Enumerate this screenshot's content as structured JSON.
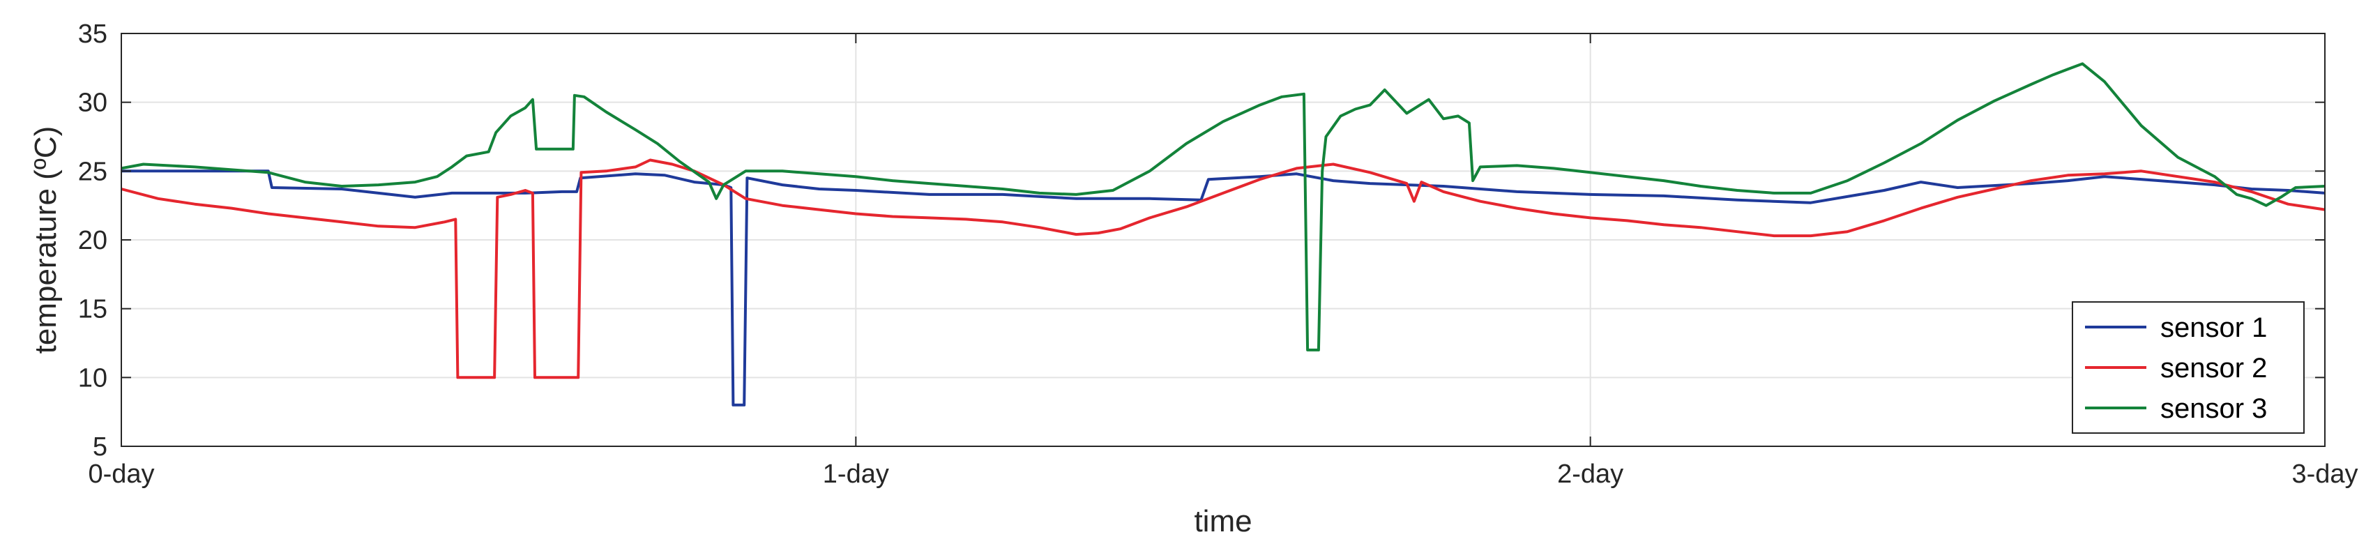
{
  "chart_data": {
    "type": "line",
    "title": "",
    "xlabel": "time",
    "ylabel": "temperature (ºC)",
    "xlim": [
      0,
      3
    ],
    "ylim": [
      5,
      35
    ],
    "x_ticks": [
      0,
      1,
      2,
      3
    ],
    "x_tick_labels": [
      "0-day",
      "1-day",
      "2-day",
      "3-day"
    ],
    "y_ticks": [
      5,
      10,
      15,
      20,
      25,
      30,
      35
    ],
    "y_tick_labels": [
      "5",
      "10",
      "15",
      "20",
      "25",
      "30",
      "35"
    ],
    "grid": true,
    "legend_position": "bottom-right",
    "series": [
      {
        "name": "sensor 1",
        "color": "#1f3a9a",
        "points": [
          [
            0.0,
            25.0
          ],
          [
            0.2,
            25.0
          ],
          [
            0.205,
            23.8
          ],
          [
            0.3,
            23.7
          ],
          [
            0.35,
            23.4
          ],
          [
            0.4,
            23.1
          ],
          [
            0.45,
            23.4
          ],
          [
            0.5,
            23.4
          ],
          [
            0.55,
            23.4
          ],
          [
            0.6,
            23.5
          ],
          [
            0.62,
            23.5
          ],
          [
            0.625,
            24.5
          ],
          [
            0.7,
            24.8
          ],
          [
            0.74,
            24.7
          ],
          [
            0.78,
            24.2
          ],
          [
            0.82,
            24.0
          ],
          [
            0.83,
            23.8
          ],
          [
            0.833,
            8.0
          ],
          [
            0.848,
            8.0
          ],
          [
            0.852,
            24.5
          ],
          [
            0.9,
            24.0
          ],
          [
            0.95,
            23.7
          ],
          [
            1.0,
            23.6
          ],
          [
            1.1,
            23.3
          ],
          [
            1.2,
            23.3
          ],
          [
            1.3,
            23.0
          ],
          [
            1.4,
            23.0
          ],
          [
            1.47,
            22.9
          ],
          [
            1.48,
            24.4
          ],
          [
            1.55,
            24.6
          ],
          [
            1.6,
            24.8
          ],
          [
            1.65,
            24.3
          ],
          [
            1.7,
            24.1
          ],
          [
            1.8,
            23.9
          ],
          [
            1.9,
            23.5
          ],
          [
            2.0,
            23.3
          ],
          [
            2.1,
            23.2
          ],
          [
            2.2,
            22.9
          ],
          [
            2.3,
            22.7
          ],
          [
            2.4,
            23.6
          ],
          [
            2.45,
            24.2
          ],
          [
            2.5,
            23.8
          ],
          [
            2.6,
            24.1
          ],
          [
            2.65,
            24.3
          ],
          [
            2.7,
            24.6
          ],
          [
            2.8,
            24.2
          ],
          [
            2.85,
            24.0
          ],
          [
            2.9,
            23.7
          ],
          [
            2.95,
            23.6
          ],
          [
            3.0,
            23.4
          ]
        ]
      },
      {
        "name": "sensor 2",
        "color": "#e5262e",
        "points": [
          [
            0.0,
            23.7
          ],
          [
            0.05,
            23.0
          ],
          [
            0.1,
            22.6
          ],
          [
            0.15,
            22.3
          ],
          [
            0.2,
            21.9
          ],
          [
            0.25,
            21.6
          ],
          [
            0.3,
            21.3
          ],
          [
            0.35,
            21.0
          ],
          [
            0.4,
            20.9
          ],
          [
            0.44,
            21.3
          ],
          [
            0.455,
            21.5
          ],
          [
            0.458,
            10.0
          ],
          [
            0.508,
            10.0
          ],
          [
            0.512,
            23.1
          ],
          [
            0.53,
            23.3
          ],
          [
            0.55,
            23.6
          ],
          [
            0.56,
            23.4
          ],
          [
            0.563,
            10.0
          ],
          [
            0.622,
            10.0
          ],
          [
            0.626,
            24.9
          ],
          [
            0.66,
            25.0
          ],
          [
            0.7,
            25.3
          ],
          [
            0.72,
            25.8
          ],
          [
            0.75,
            25.5
          ],
          [
            0.78,
            25.0
          ],
          [
            0.82,
            24.0
          ],
          [
            0.85,
            23.0
          ],
          [
            0.9,
            22.5
          ],
          [
            0.95,
            22.2
          ],
          [
            1.0,
            21.9
          ],
          [
            1.05,
            21.7
          ],
          [
            1.1,
            21.6
          ],
          [
            1.15,
            21.5
          ],
          [
            1.2,
            21.3
          ],
          [
            1.25,
            20.9
          ],
          [
            1.3,
            20.4
          ],
          [
            1.33,
            20.5
          ],
          [
            1.36,
            20.8
          ],
          [
            1.4,
            21.6
          ],
          [
            1.45,
            22.4
          ],
          [
            1.5,
            23.4
          ],
          [
            1.55,
            24.4
          ],
          [
            1.6,
            25.2
          ],
          [
            1.65,
            25.5
          ],
          [
            1.7,
            24.9
          ],
          [
            1.75,
            24.1
          ],
          [
            1.76,
            22.8
          ],
          [
            1.77,
            24.2
          ],
          [
            1.8,
            23.5
          ],
          [
            1.85,
            22.8
          ],
          [
            1.9,
            22.3
          ],
          [
            1.95,
            21.9
          ],
          [
            2.0,
            21.6
          ],
          [
            2.05,
            21.4
          ],
          [
            2.1,
            21.1
          ],
          [
            2.15,
            20.9
          ],
          [
            2.2,
            20.6
          ],
          [
            2.25,
            20.3
          ],
          [
            2.3,
            20.3
          ],
          [
            2.35,
            20.6
          ],
          [
            2.4,
            21.4
          ],
          [
            2.45,
            22.3
          ],
          [
            2.5,
            23.1
          ],
          [
            2.55,
            23.7
          ],
          [
            2.6,
            24.3
          ],
          [
            2.65,
            24.7
          ],
          [
            2.7,
            24.8
          ],
          [
            2.75,
            25.0
          ],
          [
            2.8,
            24.6
          ],
          [
            2.85,
            24.2
          ],
          [
            2.9,
            23.5
          ],
          [
            2.95,
            22.6
          ],
          [
            3.0,
            22.2
          ]
        ]
      },
      {
        "name": "sensor 3",
        "color": "#13833a",
        "points": [
          [
            0.0,
            25.2
          ],
          [
            0.03,
            25.5
          ],
          [
            0.1,
            25.3
          ],
          [
            0.15,
            25.1
          ],
          [
            0.2,
            24.9
          ],
          [
            0.25,
            24.2
          ],
          [
            0.3,
            23.9
          ],
          [
            0.35,
            24.0
          ],
          [
            0.4,
            24.2
          ],
          [
            0.43,
            24.6
          ],
          [
            0.45,
            25.3
          ],
          [
            0.47,
            26.1
          ],
          [
            0.5,
            26.4
          ],
          [
            0.51,
            27.8
          ],
          [
            0.53,
            29.0
          ],
          [
            0.55,
            29.6
          ],
          [
            0.56,
            30.2
          ],
          [
            0.565,
            26.6
          ],
          [
            0.59,
            26.6
          ],
          [
            0.615,
            26.6
          ],
          [
            0.617,
            30.5
          ],
          [
            0.63,
            30.4
          ],
          [
            0.66,
            29.3
          ],
          [
            0.7,
            28.0
          ],
          [
            0.73,
            27.0
          ],
          [
            0.76,
            25.7
          ],
          [
            0.8,
            24.2
          ],
          [
            0.81,
            23.0
          ],
          [
            0.82,
            24.0
          ],
          [
            0.85,
            25.0
          ],
          [
            0.9,
            25.0
          ],
          [
            0.95,
            24.8
          ],
          [
            1.0,
            24.6
          ],
          [
            1.05,
            24.3
          ],
          [
            1.1,
            24.1
          ],
          [
            1.15,
            23.9
          ],
          [
            1.2,
            23.7
          ],
          [
            1.25,
            23.4
          ],
          [
            1.3,
            23.3
          ],
          [
            1.35,
            23.6
          ],
          [
            1.4,
            25.0
          ],
          [
            1.45,
            27.0
          ],
          [
            1.5,
            28.6
          ],
          [
            1.55,
            29.8
          ],
          [
            1.58,
            30.4
          ],
          [
            1.61,
            30.6
          ],
          [
            1.615,
            12.0
          ],
          [
            1.63,
            12.0
          ],
          [
            1.635,
            25.0
          ],
          [
            1.64,
            27.5
          ],
          [
            1.66,
            29.0
          ],
          [
            1.68,
            29.5
          ],
          [
            1.7,
            29.8
          ],
          [
            1.72,
            30.9
          ],
          [
            1.75,
            29.2
          ],
          [
            1.78,
            30.2
          ],
          [
            1.8,
            28.8
          ],
          [
            1.82,
            29.0
          ],
          [
            1.835,
            28.5
          ],
          [
            1.84,
            24.3
          ],
          [
            1.85,
            25.3
          ],
          [
            1.9,
            25.4
          ],
          [
            1.95,
            25.2
          ],
          [
            2.0,
            24.9
          ],
          [
            2.05,
            24.6
          ],
          [
            2.1,
            24.3
          ],
          [
            2.15,
            23.9
          ],
          [
            2.2,
            23.6
          ],
          [
            2.25,
            23.4
          ],
          [
            2.3,
            23.4
          ],
          [
            2.35,
            24.3
          ],
          [
            2.4,
            25.6
          ],
          [
            2.45,
            27.0
          ],
          [
            2.5,
            28.7
          ],
          [
            2.55,
            30.1
          ],
          [
            2.6,
            31.3
          ],
          [
            2.63,
            32.0
          ],
          [
            2.65,
            32.4
          ],
          [
            2.67,
            32.8
          ],
          [
            2.7,
            31.5
          ],
          [
            2.75,
            28.3
          ],
          [
            2.8,
            26.0
          ],
          [
            2.85,
            24.6
          ],
          [
            2.88,
            23.3
          ],
          [
            2.9,
            23.0
          ],
          [
            2.92,
            22.5
          ],
          [
            2.94,
            23.1
          ],
          [
            2.96,
            23.8
          ],
          [
            3.0,
            23.9
          ]
        ]
      }
    ]
  }
}
